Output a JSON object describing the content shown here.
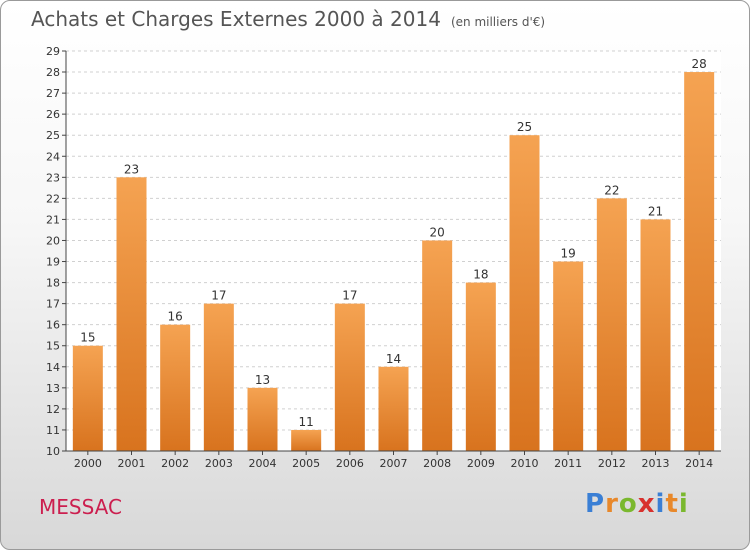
{
  "header": {
    "title": "Achats et Charges Externes 2000 à 2014",
    "subtitle": "(en milliers d'€)"
  },
  "footer": {
    "town": "MESSAC",
    "brand": "Proxiti"
  },
  "colors": {
    "bar_light": "#f5a352",
    "bar_dark": "#d8731e",
    "town": "#cc1f4f",
    "grid": "#d0d0d0"
  },
  "chart_data": {
    "type": "bar",
    "title": "Achats et Charges Externes 2000 à 2014",
    "subtitle": "(en milliers d'€)",
    "xlabel": "",
    "ylabel": "",
    "categories": [
      "2000",
      "2001",
      "2002",
      "2003",
      "2004",
      "2005",
      "2006",
      "2007",
      "2008",
      "2009",
      "2010",
      "2011",
      "2012",
      "2013",
      "2014"
    ],
    "values": [
      15,
      23,
      16,
      17,
      13,
      11,
      17,
      14,
      20,
      18,
      25,
      19,
      22,
      21,
      28
    ],
    "ylim": [
      10,
      29
    ],
    "yticks": [
      10,
      11,
      12,
      13,
      14,
      15,
      16,
      17,
      18,
      19,
      20,
      21,
      22,
      23,
      24,
      25,
      26,
      27,
      28,
      29
    ],
    "grid": "horizontal-dashed",
    "data_labels": true
  }
}
